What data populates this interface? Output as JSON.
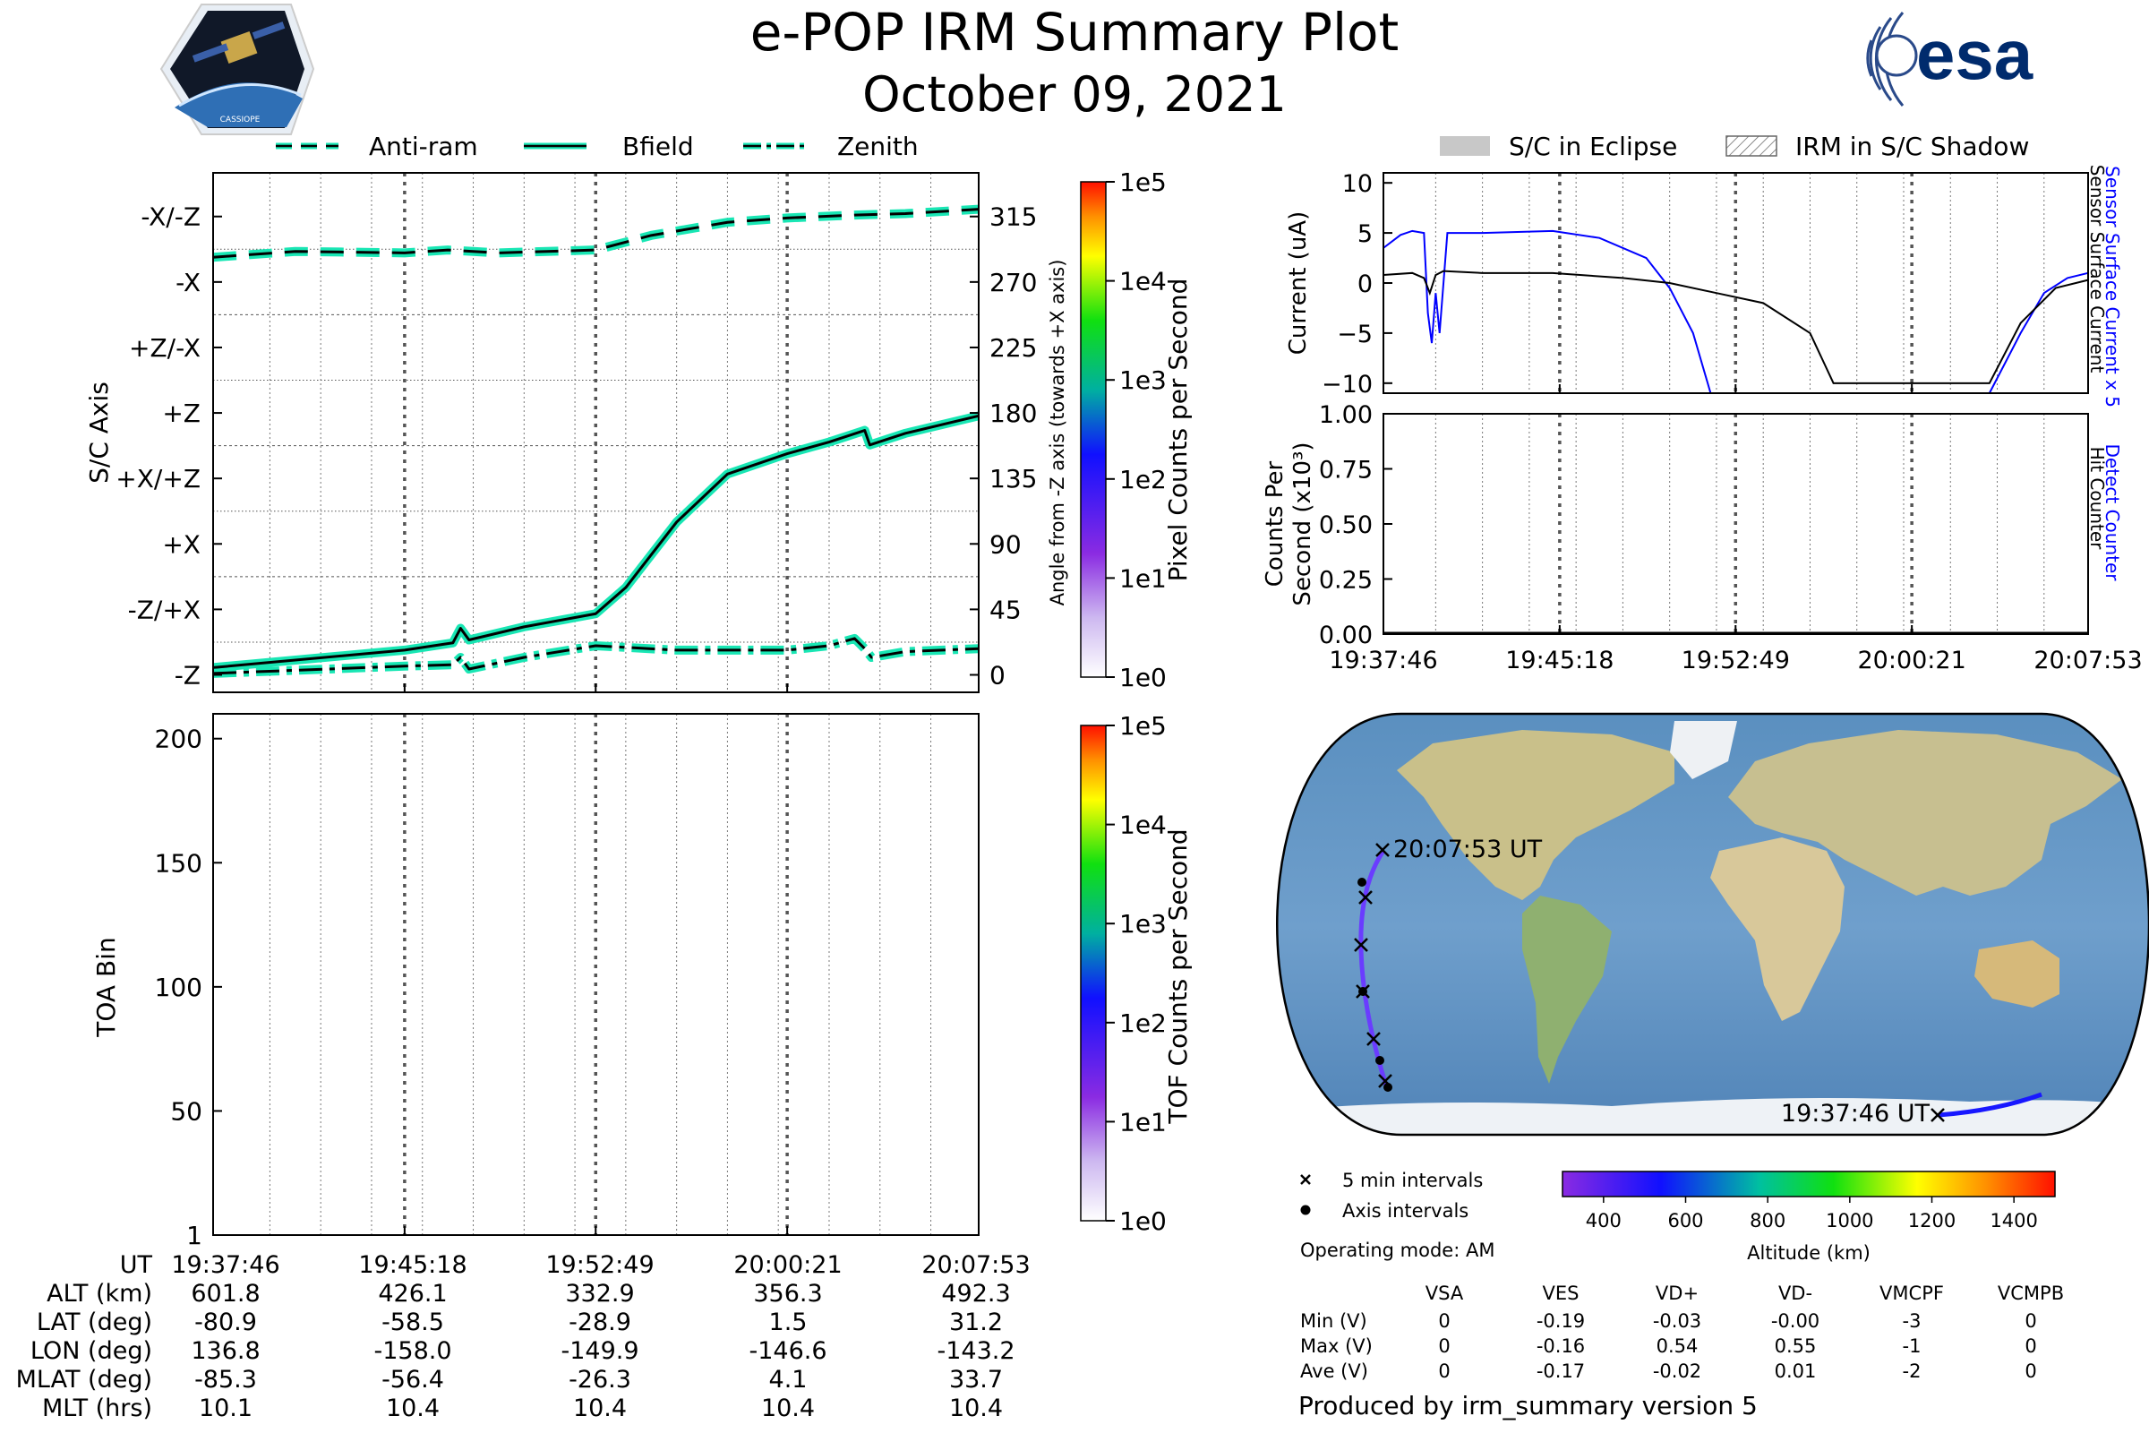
{
  "title": "e-POP IRM Summary Plot",
  "date": "October 09, 2021",
  "logo_left_text": "CASSIOPE",
  "logo_right_text": "esa",
  "legend_top_left": [
    {
      "label": "Anti-ram",
      "style": "dashed"
    },
    {
      "label": "Bfield",
      "style": "solid"
    },
    {
      "label": "Zenith",
      "style": "dashdot"
    }
  ],
  "legend_top_right": [
    {
      "label": "S/C in Eclipse"
    },
    {
      "label": "IRM in S/C Shadow"
    }
  ],
  "colors": {
    "trace_fill": "#19e6b4",
    "current_blue": "#0000ff",
    "track": "#6a3cff"
  },
  "chart_data": [
    {
      "type": "line",
      "name": "attitude",
      "ylabel_left": "S/C Axis",
      "ylabel_right": "Angle from -Z axis (towards +X axis)",
      "y_ticks_left": [
        "-X/-Z",
        "-X",
        "+Z/-X",
        "+Z",
        "+X/+Z",
        "+X",
        "-Z/+X",
        "-Z"
      ],
      "y_ticks_right": [
        "315",
        "270",
        "225",
        "180",
        "135",
        "90",
        "45",
        "0"
      ],
      "ylim": [
        -12,
        345
      ],
      "x_ticks": [
        "19:37:46",
        "19:45:18",
        "19:52:49",
        "20:00:21",
        "20:07:53"
      ],
      "series": [
        {
          "name": "Anti-ram",
          "x": [
            "19:37:46",
            "19:41:00",
            "19:45:18",
            "19:47:00",
            "19:49:00",
            "19:52:49",
            "19:55:00",
            "19:58:00",
            "20:00:21",
            "20:03:00",
            "20:05:00",
            "20:07:53"
          ],
          "values": [
            287,
            291,
            290,
            292,
            290,
            292,
            302,
            311,
            314,
            316,
            317,
            320
          ]
        },
        {
          "name": "Bfield",
          "x": [
            "19:37:46",
            "19:45:18",
            "19:47:12",
            "19:47:30",
            "19:47:50",
            "19:50:00",
            "19:52:49",
            "19:54:00",
            "19:56:00",
            "19:58:00",
            "20:00:21",
            "20:02:00",
            "20:03:24",
            "20:03:36",
            "20:05:00",
            "20:07:53"
          ],
          "values": [
            5,
            17,
            22,
            32,
            24,
            33,
            42,
            60,
            105,
            138,
            152,
            160,
            168,
            158,
            166,
            178
          ]
        },
        {
          "name": "Zenith",
          "x": [
            "19:37:46",
            "19:45:18",
            "19:47:12",
            "19:47:30",
            "19:47:50",
            "19:50:00",
            "19:52:49",
            "19:56:00",
            "20:00:21",
            "20:02:00",
            "20:03:00",
            "20:03:24",
            "20:03:40",
            "20:05:00",
            "20:07:53"
          ],
          "values": [
            1,
            6,
            7,
            12,
            4,
            12,
            20,
            17,
            17,
            20,
            25,
            18,
            12,
            16,
            18
          ]
        }
      ]
    },
    {
      "type": "heatmap",
      "name": "toa",
      "ylabel": "TOA Bin",
      "y_ticks": [
        "200",
        "150",
        "100",
        "50",
        "1"
      ],
      "ylim": [
        1,
        210
      ],
      "x_ticks": [
        "19:37:46",
        "19:45:18",
        "19:52:49",
        "20:00:21",
        "20:07:53"
      ],
      "values": []
    },
    {
      "type": "line",
      "name": "current",
      "ylabel": "Current (uA)",
      "right_label_blue": "Sensor Surface Current x 5",
      "right_label_black": "Sensor Surface Current",
      "y_ticks": [
        "10",
        "5",
        "0",
        "−5",
        "−10"
      ],
      "ylim": [
        -11,
        11
      ],
      "series": [
        {
          "name": "Sensor Surface Current x 5",
          "x": [
            "19:37:46",
            "19:38:30",
            "19:39:00",
            "19:39:30",
            "19:39:40",
            "19:39:50",
            "19:40:00",
            "19:40:10",
            "19:40:30",
            "19:41:00",
            "19:42:00",
            "19:45:00",
            "19:47:00",
            "19:49:00",
            "19:50:00",
            "19:51:00",
            "19:51:45",
            "20:03:40",
            "20:05:00",
            "20:06:00",
            "20:07:00",
            "20:07:53"
          ],
          "values": [
            3.5,
            4.8,
            5.2,
            5.0,
            -3.0,
            -6.0,
            -1.0,
            -5.0,
            5.0,
            5.0,
            5.0,
            5.2,
            4.5,
            2.5,
            -0.5,
            -5.0,
            -11.0,
            -11.0,
            -5.0,
            -1.0,
            0.5,
            1.0
          ]
        },
        {
          "name": "Sensor Surface Current",
          "x": [
            "19:37:46",
            "19:39:00",
            "19:39:30",
            "19:39:45",
            "19:40:00",
            "19:40:20",
            "19:42:00",
            "19:45:00",
            "19:48:00",
            "19:50:00",
            "19:52:00",
            "19:54:00",
            "19:56:00",
            "19:57:00",
            "20:00:00",
            "20:02:30",
            "20:03:40",
            "20:05:00",
            "20:06:30",
            "20:07:53"
          ],
          "values": [
            0.8,
            1.0,
            0.5,
            -1.0,
            0.8,
            1.2,
            1.0,
            1.0,
            0.5,
            0.0,
            -1.0,
            -2.0,
            -5.0,
            -10.0,
            -10.0,
            -10.0,
            -10.0,
            -4.0,
            -0.5,
            0.3
          ]
        }
      ]
    },
    {
      "type": "line",
      "name": "counts",
      "ylabel_line1": "Counts Per",
      "ylabel_line2": "Second (x10³)",
      "right_label_blue": "Detect Counter",
      "right_label_black": "Hit Counter",
      "y_ticks": [
        "1.00",
        "0.75",
        "0.50",
        "0.25",
        "0.00"
      ],
      "ylim": [
        0,
        1
      ],
      "x_ticks": [
        "19:37:46",
        "19:45:18",
        "19:52:49",
        "20:00:21",
        "20:07:53"
      ],
      "series": [
        {
          "name": "Detect Counter",
          "x": [
            "19:37:46",
            "20:07:53"
          ],
          "values": [
            0,
            0
          ]
        },
        {
          "name": "Hit Counter",
          "x": [
            "19:37:46",
            "20:07:53"
          ],
          "values": [
            0,
            0
          ]
        }
      ]
    }
  ],
  "colorbar_pixel": {
    "label": "Pixel Counts per Second",
    "ticks": [
      "1e5",
      "1e4",
      "1e3",
      "1e2",
      "1e1",
      "1e0"
    ]
  },
  "colorbar_tof": {
    "label": "TOF Counts per Second",
    "ticks": [
      "1e5",
      "1e4",
      "1e3",
      "1e2",
      "1e1",
      "1e0"
    ]
  },
  "map": {
    "label_end": "20:07:53 UT",
    "label_start": "19:37:46 UT",
    "legend_5min": "5 min intervals",
    "legend_axis": "Axis intervals",
    "altitude_label": "Altitude (km)",
    "altitude_ticks": [
      "400",
      "600",
      "800",
      "1000",
      "1200",
      "1400"
    ]
  },
  "operating_mode": "Operating mode: AM",
  "voltage_table": {
    "columns": [
      "VSA",
      "VES",
      "VD+",
      "VD-",
      "VMCPF",
      "VCMPB"
    ],
    "rows": [
      {
        "label": "Min (V)",
        "values": [
          "0",
          "-0.19",
          "-0.03",
          "-0.00",
          "-3",
          "0"
        ]
      },
      {
        "label": "Max (V)",
        "values": [
          "0",
          "-0.16",
          "0.54",
          "0.55",
          "-1",
          "0"
        ]
      },
      {
        "label": "Ave (V)",
        "values": [
          "0",
          "-0.17",
          "-0.02",
          "0.01",
          "-2",
          "0"
        ]
      }
    ]
  },
  "ephemeris": {
    "rows": [
      {
        "label": "UT",
        "values": [
          "19:37:46",
          "19:45:18",
          "19:52:49",
          "20:00:21",
          "20:07:53"
        ]
      },
      {
        "label": "ALT (km)",
        "values": [
          "601.8",
          "426.1",
          "332.9",
          "356.3",
          "492.3"
        ]
      },
      {
        "label": "LAT (deg)",
        "values": [
          "-80.9",
          "-58.5",
          "-28.9",
          "1.5",
          "31.2"
        ]
      },
      {
        "label": "LON (deg)",
        "values": [
          "136.8",
          "-158.0",
          "-149.9",
          "-146.6",
          "-143.2"
        ]
      },
      {
        "label": "MLAT (deg)",
        "values": [
          "-85.3",
          "-56.4",
          "-26.3",
          "4.1",
          "33.7"
        ]
      },
      {
        "label": "MLT (hrs)",
        "values": [
          "10.1",
          "10.4",
          "10.4",
          "10.4",
          "10.4"
        ]
      }
    ]
  },
  "footer": "Produced by irm_summary version 5"
}
